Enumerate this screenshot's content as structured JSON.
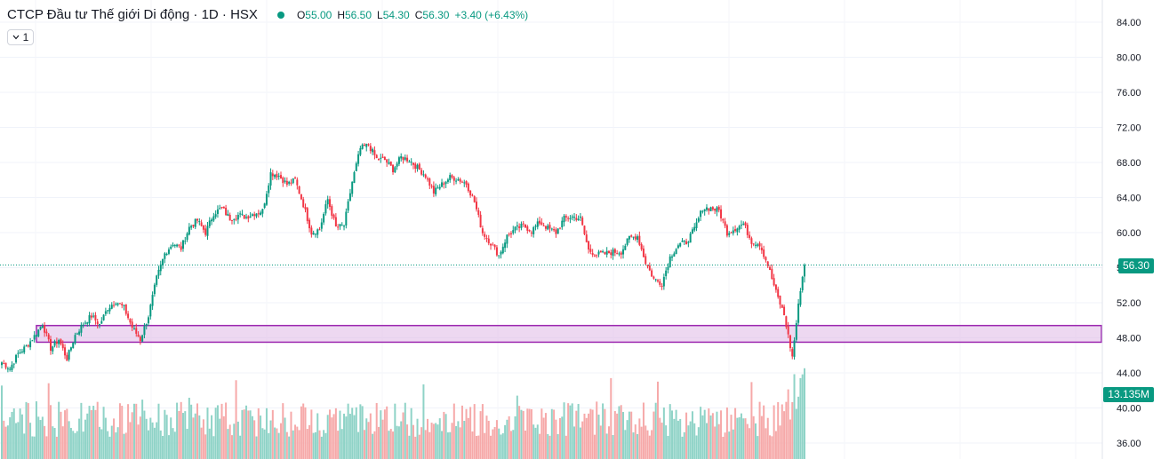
{
  "legend": {
    "title": "CTCP Đầu tư Thế giới Di động · 1D · HSX",
    "status_color": "#089981",
    "open_label": "O",
    "open": "55.00",
    "high_label": "H",
    "high": "56.50",
    "low_label": "L",
    "low": "54.30",
    "close_label": "C",
    "close": "56.30",
    "change": "+3.40 (+6.43%)"
  },
  "interval_button": {
    "icon": "chevron-down-icon",
    "label": "1"
  },
  "badges": {
    "last_price": "56.30",
    "volume": "13.135M"
  },
  "colors": {
    "up": "#089981",
    "down": "#f23645",
    "zone_border": "#9c27b0",
    "zone_fill": "#e1bee7",
    "volume_up": "#8fd3c7",
    "volume_down": "#f6a9a9"
  },
  "chart_data": {
    "type": "candlestick",
    "y_ticks": [
      "84.00",
      "80.00",
      "76.00",
      "72.00",
      "68.00",
      "64.00",
      "60.00",
      "56.00",
      "52.00",
      "48.00",
      "44.00",
      "40.00",
      "36.00"
    ],
    "ylim": [
      34,
      86
    ],
    "last_price": 56.3,
    "last_volume": "13.135M",
    "grid": true,
    "support_zone": {
      "low": 47.5,
      "high": 49.4
    },
    "close_path_keypoints": [
      [
        0,
        45.2
      ],
      [
        4,
        44.5
      ],
      [
        8,
        46.2
      ],
      [
        12,
        47.0
      ],
      [
        16,
        48.2
      ],
      [
        20,
        49.6
      ],
      [
        24,
        46.8
      ],
      [
        28,
        47.8
      ],
      [
        32,
        45.6
      ],
      [
        36,
        48.3
      ],
      [
        40,
        49.6
      ],
      [
        44,
        50.5
      ],
      [
        48,
        49.5
      ],
      [
        52,
        51.4
      ],
      [
        56,
        52.2
      ],
      [
        60,
        51.4
      ],
      [
        64,
        49.2
      ],
      [
        68,
        47.8
      ],
      [
        72,
        50.5
      ],
      [
        76,
        54.8
      ],
      [
        80,
        57.6
      ],
      [
        84,
        58.8
      ],
      [
        88,
        58.2
      ],
      [
        92,
        60.6
      ],
      [
        96,
        61.4
      ],
      [
        100,
        60.0
      ],
      [
        104,
        62.2
      ],
      [
        108,
        62.8
      ],
      [
        112,
        61.6
      ],
      [
        116,
        62.0
      ],
      [
        120,
        61.8
      ],
      [
        124,
        62.2
      ],
      [
        128,
        62.5
      ],
      [
        132,
        66.8
      ],
      [
        136,
        66.5
      ],
      [
        140,
        65.5
      ],
      [
        144,
        66.0
      ],
      [
        148,
        63.2
      ],
      [
        152,
        60.0
      ],
      [
        156,
        60.4
      ],
      [
        160,
        63.8
      ],
      [
        164,
        60.6
      ],
      [
        168,
        60.8
      ],
      [
        172,
        65.8
      ],
      [
        176,
        69.6
      ],
      [
        180,
        70.0
      ],
      [
        184,
        68.4
      ],
      [
        188,
        68.3
      ],
      [
        192,
        67.2
      ],
      [
        196,
        68.6
      ],
      [
        200,
        68.3
      ],
      [
        204,
        67.4
      ],
      [
        208,
        66.5
      ],
      [
        212,
        64.6
      ],
      [
        216,
        65.5
      ],
      [
        220,
        66.3
      ],
      [
        224,
        66.1
      ],
      [
        228,
        65.6
      ],
      [
        232,
        63.5
      ],
      [
        236,
        60.0
      ],
      [
        240,
        58.8
      ],
      [
        244,
        57.4
      ],
      [
        248,
        59.6
      ],
      [
        252,
        60.4
      ],
      [
        256,
        60.8
      ],
      [
        260,
        60.2
      ],
      [
        264,
        61.2
      ],
      [
        268,
        60.5
      ],
      [
        272,
        60.0
      ],
      [
        276,
        61.6
      ],
      [
        280,
        61.8
      ],
      [
        284,
        61.6
      ],
      [
        288,
        58.0
      ],
      [
        292,
        57.5
      ],
      [
        296,
        57.6
      ],
      [
        300,
        57.8
      ],
      [
        304,
        57.8
      ],
      [
        308,
        59.4
      ],
      [
        312,
        59.6
      ],
      [
        316,
        56.6
      ],
      [
        320,
        54.7
      ],
      [
        324,
        54.2
      ],
      [
        328,
        57.2
      ],
      [
        332,
        58.6
      ],
      [
        336,
        58.9
      ],
      [
        340,
        60.4
      ],
      [
        344,
        62.8
      ],
      [
        348,
        62.8
      ],
      [
        352,
        62.5
      ],
      [
        356,
        60.0
      ],
      [
        360,
        60.5
      ],
      [
        364,
        61.0
      ],
      [
        368,
        59.0
      ],
      [
        372,
        58.7
      ],
      [
        376,
        56.3
      ],
      [
        380,
        53.2
      ],
      [
        384,
        50.6
      ],
      [
        388,
        45.8
      ],
      [
        392,
        53.6
      ],
      [
        394,
        56.3
      ]
    ],
    "last_candle": {
      "open": 55.0,
      "high": 56.5,
      "low": 54.3,
      "close": 56.3
    }
  }
}
